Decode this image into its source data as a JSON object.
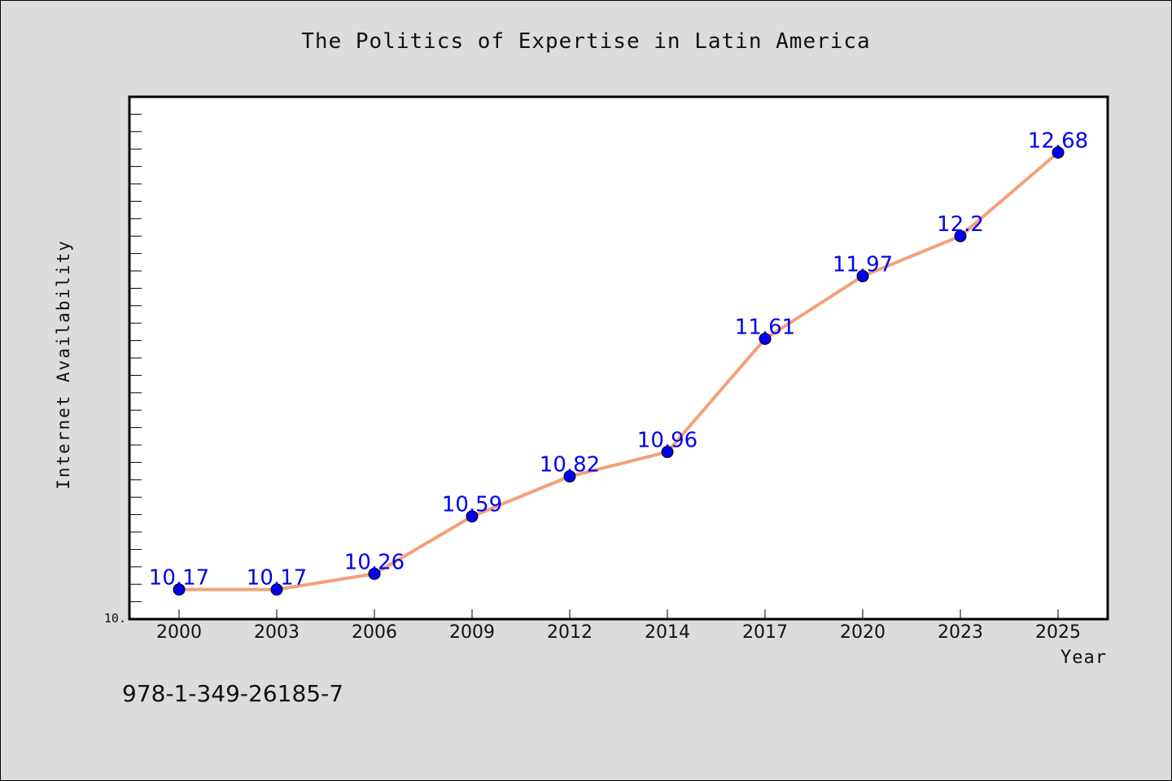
{
  "page": {
    "isbn": "978-1-349-26185-7"
  },
  "chart_data": {
    "type": "line",
    "title": "The Politics of Expertise in Latin America",
    "xlabel": "Year",
    "ylabel": "Internet Availability",
    "categories": [
      "2000",
      "2003",
      "2006",
      "2009",
      "2012",
      "2014",
      "2017",
      "2020",
      "2023",
      "2025"
    ],
    "series": [
      {
        "values": [
          10.17,
          10.17,
          10.26,
          10.59,
          10.82,
          10.96,
          11.61,
          11.97,
          12.2,
          12.68
        ]
      }
    ],
    "ylim": [
      10.0,
      13.0
    ],
    "y_tick_labels": [
      "10."
    ],
    "grid": false,
    "colors": {
      "line": "#f4a07a",
      "marker": "#0000ee",
      "data_label": "#0000ee",
      "plot_background": "#ffffff",
      "figure_background": "#dcdcdc"
    }
  }
}
